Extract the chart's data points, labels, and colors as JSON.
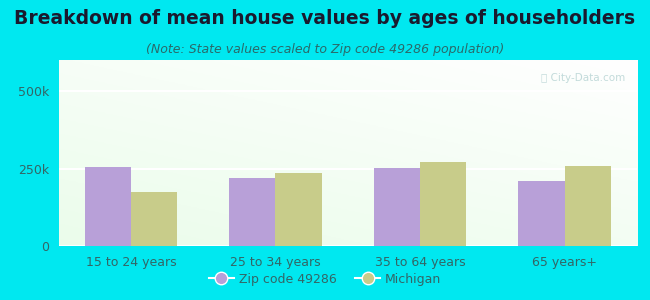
{
  "title": "Breakdown of mean house values by ages of householders",
  "subtitle": "(Note: State values scaled to Zip code 49286 population)",
  "categories": [
    "15 to 24 years",
    "25 to 34 years",
    "35 to 64 years",
    "65 years+"
  ],
  "zip_values": [
    255000,
    220000,
    252000,
    210000
  ],
  "michigan_values": [
    175000,
    237000,
    272000,
    258000
  ],
  "zip_color": "#b8a0d8",
  "michigan_color": "#c8cc8a",
  "ylim": [
    0,
    600000
  ],
  "ytick_vals": [
    0,
    250000,
    500000
  ],
  "ytick_labels": [
    "0",
    "250k",
    "500k"
  ],
  "background_color": "#00e8f0",
  "title_color": "#1a1a2e",
  "subtitle_color": "#2a6a6a",
  "tick_color": "#336666",
  "title_fontsize": 13.5,
  "subtitle_fontsize": 9,
  "legend_label_zip": "Zip code 49286",
  "legend_label_michigan": "Michigan",
  "bar_width": 0.32,
  "watermark": "ⓘ City-Data.com"
}
